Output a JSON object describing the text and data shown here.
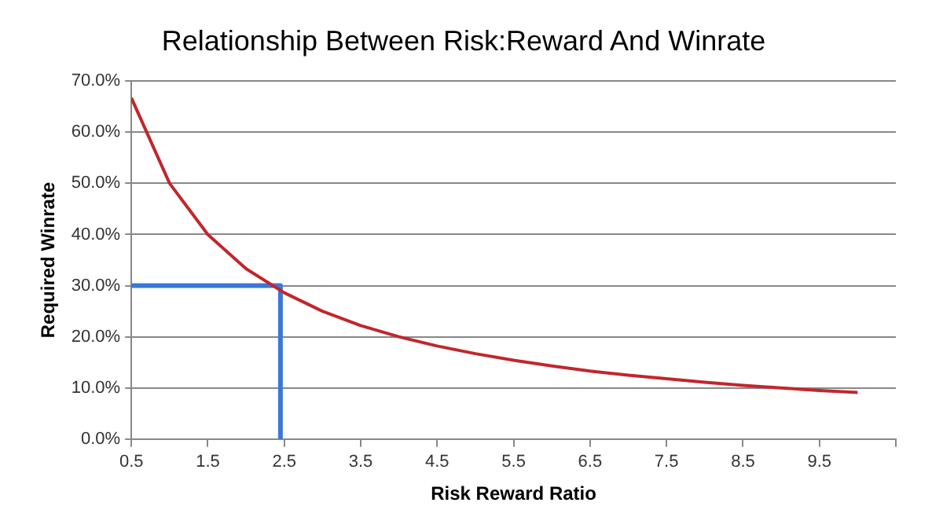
{
  "chart_data": {
    "type": "line",
    "title": "Relationship Between Risk:Reward And Winrate",
    "xlabel": "Risk Reward Ratio",
    "ylabel": "Required Winrate",
    "xlim": [
      0.5,
      10.5
    ],
    "xticks": [
      0.5,
      1.5,
      2.5,
      3.5,
      4.5,
      5.5,
      6.5,
      7.5,
      8.5,
      9.5,
      {
        "value": 10.5,
        "label": null
      }
    ],
    "ylim": [
      0,
      70
    ],
    "yticks": [
      {
        "value": 0,
        "label": "0.0%"
      },
      {
        "value": 10,
        "label": "10.0%"
      },
      {
        "value": 20,
        "label": "20.0%"
      },
      {
        "value": 30,
        "label": "30.0%"
      },
      {
        "value": 40,
        "label": "40.0%"
      },
      {
        "value": 50,
        "label": "50.0%"
      },
      {
        "value": 60,
        "label": "60.0%"
      },
      {
        "value": 70,
        "label": "70.0%"
      }
    ],
    "grid": "y",
    "legend": false,
    "marker": "none",
    "line_style": "solid",
    "series": [
      {
        "color": "#c0272d",
        "x": [
          0.5,
          1,
          1.5,
          2,
          2.5,
          3,
          3.5,
          4,
          4.5,
          5,
          5.5,
          6,
          6.5,
          7,
          7.5,
          8,
          8.5,
          9,
          9.5,
          10
        ],
        "values": [
          66.7,
          50,
          40,
          33.3,
          28.6,
          25,
          22.2,
          20,
          18.2,
          16.7,
          15.4,
          14.3,
          13.3,
          12.5,
          11.8,
          11.1,
          10.5,
          10,
          9.5,
          9.1
        ]
      },
      {
        "color": "#3a78d8",
        "x": [
          0.5,
          2.45,
          2.45
        ],
        "values": [
          30,
          30,
          0
        ]
      }
    ]
  }
}
